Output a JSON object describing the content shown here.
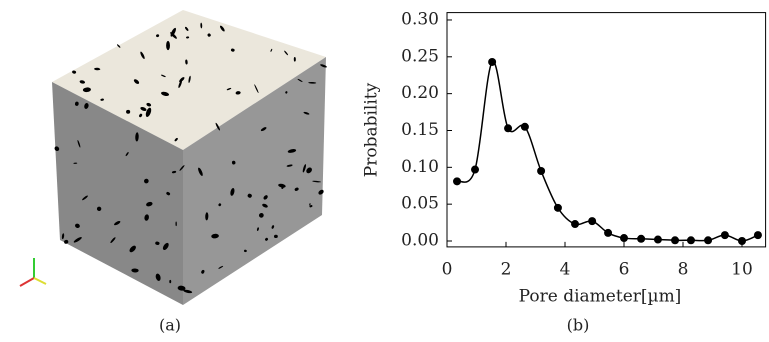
{
  "chart_data": {
    "type": "line",
    "x_label": "Pore diameter[µm]",
    "y_label": "Probability",
    "series": [
      {
        "color": "#000000",
        "x": [
          0.34,
          0.95,
          1.53,
          2.07,
          2.64,
          3.19,
          3.76,
          4.34,
          4.92,
          5.46,
          6.0,
          6.58,
          7.15,
          7.73,
          8.27,
          8.85,
          9.42,
          10.0,
          10.54
        ],
        "values": [
          0.081,
          0.097,
          0.243,
          0.153,
          0.155,
          0.095,
          0.045,
          0.023,
          0.027,
          0.011,
          0.004,
          0.003,
          0.002,
          0.001,
          0.001,
          0.001,
          0.008,
          0.0,
          0.008
        ]
      }
    ],
    "xlim": [
      0,
      10.8
    ],
    "ylim": [
      -0.008,
      0.31
    ],
    "xticks": [
      0,
      2,
      4,
      6,
      8,
      10
    ],
    "yticks": [
      {
        "value": 0,
        "label": "0.00"
      },
      {
        "value": 0.05,
        "label": "0.05"
      },
      {
        "value": 0.1,
        "label": "0.10"
      },
      {
        "value": 0.15,
        "label": "0.15"
      },
      {
        "value": 0.2,
        "label": "0.20"
      },
      {
        "value": 0.25,
        "label": "0.25"
      },
      {
        "value": 0.3,
        "label": "0.30"
      }
    ],
    "grid": false
  },
  "captions": [
    "(a)",
    "(b)"
  ]
}
